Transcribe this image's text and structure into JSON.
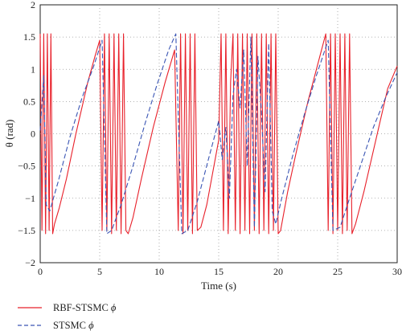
{
  "chart_data": {
    "type": "line",
    "xlabel": "Time (s)",
    "ylabel": "θ (rad)",
    "xlim": [
      0,
      30
    ],
    "ylim": [
      -2,
      2
    ],
    "xticks": [
      0,
      5,
      10,
      15,
      20,
      25,
      30
    ],
    "yticks": [
      -2,
      -1.5,
      -1,
      -0.5,
      0,
      0.5,
      1,
      1.5,
      2
    ],
    "grid": true,
    "legend_position": "below",
    "series": [
      {
        "name": "RBF-STSMC ϕ",
        "color": "#e8202a",
        "style": "solid",
        "points": [
          [
            0,
            1.55
          ],
          [
            0.15,
            -1.5
          ],
          [
            0.3,
            1.55
          ],
          [
            0.45,
            -1.55
          ],
          [
            0.6,
            1.55
          ],
          [
            0.75,
            -1.5
          ],
          [
            0.9,
            1.55
          ],
          [
            1.05,
            -1.55
          ],
          [
            1.2,
            -1.4
          ],
          [
            1.6,
            -1.15
          ],
          [
            2.2,
            -0.7
          ],
          [
            3.0,
            0.0
          ],
          [
            4.0,
            0.8
          ],
          [
            4.6,
            1.2
          ],
          [
            5.0,
            1.45
          ],
          [
            5.2,
            -1.5
          ],
          [
            5.4,
            1.55
          ],
          [
            5.6,
            -1.5
          ],
          [
            5.8,
            1.55
          ],
          [
            6.0,
            -1.55
          ],
          [
            6.2,
            1.55
          ],
          [
            6.4,
            -1.5
          ],
          [
            6.6,
            1.55
          ],
          [
            6.8,
            -1.55
          ],
          [
            7.0,
            1.55
          ],
          [
            7.2,
            -1.5
          ],
          [
            7.4,
            -1.55
          ],
          [
            7.8,
            -1.3
          ],
          [
            8.5,
            -0.7
          ],
          [
            9.5,
            0.1
          ],
          [
            10.5,
            0.8
          ],
          [
            11.3,
            1.3
          ],
          [
            11.6,
            -1.5
          ],
          [
            11.8,
            1.55
          ],
          [
            12.0,
            -1.55
          ],
          [
            12.2,
            1.55
          ],
          [
            12.4,
            -1.5
          ],
          [
            12.6,
            1.55
          ],
          [
            12.8,
            -1.55
          ],
          [
            13.0,
            1.55
          ],
          [
            13.2,
            -1.5
          ],
          [
            13.5,
            -1.45
          ],
          [
            14.0,
            -1.1
          ],
          [
            14.5,
            -0.6
          ],
          [
            15.0,
            -0.1
          ],
          [
            15.2,
            1.55
          ],
          [
            15.4,
            -1.5
          ],
          [
            15.6,
            1.55
          ],
          [
            15.8,
            -1.55
          ],
          [
            16.0,
            0.8
          ],
          [
            16.2,
            1.55
          ],
          [
            16.4,
            -1.5
          ],
          [
            16.6,
            1.55
          ],
          [
            16.8,
            -1.55
          ],
          [
            17.0,
            1.55
          ],
          [
            17.2,
            -1.5
          ],
          [
            17.4,
            1.55
          ],
          [
            17.6,
            -1.55
          ],
          [
            17.8,
            1.55
          ],
          [
            18.0,
            -1.5
          ],
          [
            18.2,
            1.55
          ],
          [
            18.4,
            -1.55
          ],
          [
            18.6,
            1.55
          ],
          [
            18.8,
            -1.5
          ],
          [
            19.0,
            1.55
          ],
          [
            19.2,
            -1.55
          ],
          [
            19.4,
            1.55
          ],
          [
            19.6,
            -1.5
          ],
          [
            19.8,
            1.55
          ],
          [
            20.0,
            -1.55
          ],
          [
            20.2,
            -1.5
          ],
          [
            20.8,
            -0.9
          ],
          [
            21.5,
            -0.3
          ],
          [
            22.5,
            0.5
          ],
          [
            23.5,
            1.2
          ],
          [
            24.0,
            1.55
          ],
          [
            24.2,
            -1.5
          ],
          [
            24.4,
            1.55
          ],
          [
            24.6,
            -1.55
          ],
          [
            24.8,
            1.55
          ],
          [
            25.0,
            -1.5
          ],
          [
            25.2,
            1.55
          ],
          [
            25.4,
            -1.55
          ],
          [
            25.6,
            1.55
          ],
          [
            25.8,
            -1.5
          ],
          [
            26.0,
            1.55
          ],
          [
            26.2,
            -1.55
          ],
          [
            26.5,
            -1.4
          ],
          [
            27.2,
            -0.9
          ],
          [
            28.2,
            -0.1
          ],
          [
            29.2,
            0.7
          ],
          [
            30.0,
            1.05
          ]
        ]
      },
      {
        "name": "STSMC ϕ",
        "color": "#3a55b4",
        "style": "dashed",
        "points": [
          [
            0,
            0.05
          ],
          [
            0.3,
            0.9
          ],
          [
            0.5,
            -1.1
          ],
          [
            0.8,
            -1.2
          ],
          [
            1.5,
            -0.75
          ],
          [
            2.5,
            -0.05
          ],
          [
            3.5,
            0.55
          ],
          [
            4.5,
            1.05
          ],
          [
            5.2,
            1.45
          ],
          [
            5.6,
            -1.55
          ],
          [
            6.0,
            -1.5
          ],
          [
            6.8,
            -1.1
          ],
          [
            7.8,
            -0.5
          ],
          [
            8.8,
            0.15
          ],
          [
            9.8,
            0.75
          ],
          [
            10.8,
            1.3
          ],
          [
            11.4,
            1.55
          ],
          [
            11.9,
            -1.55
          ],
          [
            12.4,
            -1.5
          ],
          [
            13.2,
            -1.05
          ],
          [
            14.2,
            -0.35
          ],
          [
            15.0,
            0.2
          ],
          [
            15.3,
            -0.4
          ],
          [
            15.6,
            0.1
          ],
          [
            15.9,
            -1.0
          ],
          [
            16.2,
            0.6
          ],
          [
            16.5,
            1.0
          ],
          [
            16.8,
            0.4
          ],
          [
            17.1,
            1.3
          ],
          [
            17.4,
            -0.5
          ],
          [
            17.7,
            1.5
          ],
          [
            18.0,
            -1.45
          ],
          [
            18.3,
            1.2
          ],
          [
            18.6,
            0.3
          ],
          [
            18.9,
            -0.9
          ],
          [
            19.2,
            1.4
          ],
          [
            19.5,
            -1.2
          ],
          [
            19.8,
            -1.4
          ],
          [
            20.3,
            -1.0
          ],
          [
            21.2,
            -0.35
          ],
          [
            22.2,
            0.3
          ],
          [
            23.2,
            0.9
          ],
          [
            24.2,
            1.45
          ],
          [
            24.6,
            -1.5
          ],
          [
            25.2,
            -1.45
          ],
          [
            26.0,
            -1.0
          ],
          [
            27.0,
            -0.45
          ],
          [
            28.0,
            0.1
          ],
          [
            29.0,
            0.55
          ],
          [
            30.0,
            0.95
          ]
        ]
      }
    ]
  },
  "legend": {
    "items": [
      {
        "label": "RBF-STSMC ",
        "symbol": "ϕ"
      },
      {
        "label": "STSMC ",
        "symbol": "ϕ"
      }
    ]
  }
}
